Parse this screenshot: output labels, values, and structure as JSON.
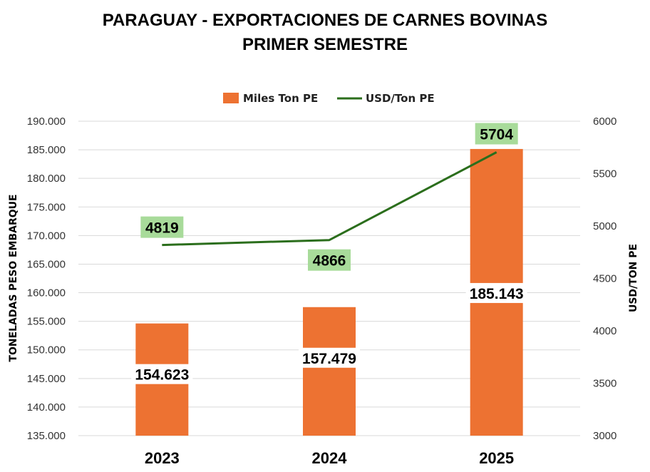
{
  "chart_data": {
    "type": "bar",
    "title_line1": "PARAGUAY - EXPORTACIONES DE CARNES BOVINAS",
    "title_line2": "PRIMER SEMESTRE",
    "categories": [
      "2023",
      "2024",
      "2025"
    ],
    "series": [
      {
        "name": "Miles Ton PE",
        "type": "bar",
        "axis": "left",
        "values": [
          154623,
          157479,
          185143
        ],
        "labels": [
          "154.623",
          "157.479",
          "185.143"
        ],
        "color": "#ED7232"
      },
      {
        "name": "USD/Ton PE",
        "type": "line",
        "axis": "right",
        "values": [
          4819,
          4866,
          5704
        ],
        "labels": [
          "4819",
          "4866",
          "5704"
        ],
        "color": "#2B6E1C",
        "label_bg": "#A8DB9A"
      }
    ],
    "ylabel_left": "TONELADAS PESO EMBARQUE",
    "ylabel_right": "USD/TON PE",
    "ylim_left": [
      135000,
      190000
    ],
    "yticks_left": [
      "135.000",
      "140.000",
      "145.000",
      "150.000",
      "155.000",
      "160.000",
      "165.000",
      "170.000",
      "175.000",
      "180.000",
      "185.000",
      "190.000"
    ],
    "ylim_right": [
      3000,
      6000
    ],
    "yticks_right": [
      "3000",
      "3500",
      "4000",
      "4500",
      "5000",
      "5500",
      "6000"
    ],
    "legend_position": "top-center",
    "grid": true
  }
}
